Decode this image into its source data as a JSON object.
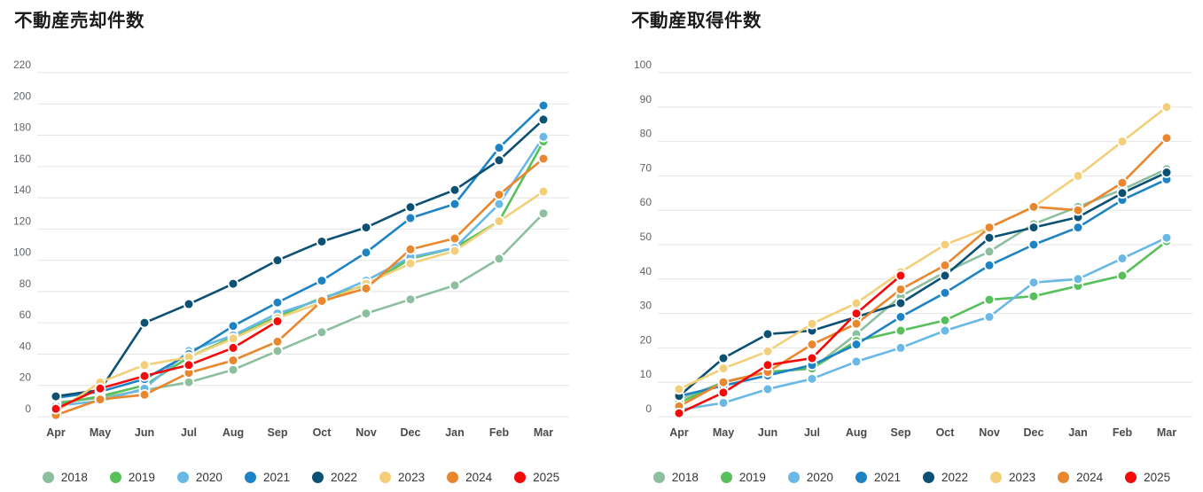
{
  "chart_data": [
    {
      "type": "line",
      "title": "不動産売却件数",
      "legend_position": "bottom",
      "grid": true,
      "categories": [
        "Apr",
        "May",
        "Jun",
        "Jul",
        "Aug",
        "Sep",
        "Oct",
        "Nov",
        "Dec",
        "Jan",
        "Feb",
        "Mar"
      ],
      "y_axis": {
        "min": 0,
        "max": 220,
        "step": 20
      },
      "series": [
        {
          "name": "2018",
          "color": "#8CBF9E",
          "values": [
            9,
            12,
            17,
            22,
            30,
            42,
            54,
            66,
            75,
            84,
            101,
            130
          ]
        },
        {
          "name": "2019",
          "color": "#57C05B",
          "values": [
            8,
            13,
            20,
            38,
            51,
            64,
            76,
            84,
            101,
            108,
            125,
            176
          ]
        },
        {
          "name": "2020",
          "color": "#69B8E5",
          "values": [
            7,
            10,
            18,
            42,
            52,
            66,
            75,
            87,
            102,
            108,
            136,
            179
          ]
        },
        {
          "name": "2021",
          "color": "#1E83C5",
          "values": [
            12,
            16,
            24,
            40,
            58,
            73,
            87,
            105,
            127,
            136,
            172,
            199
          ]
        },
        {
          "name": "2022",
          "color": "#0C5174",
          "values": [
            13,
            17,
            60,
            72,
            85,
            100,
            112,
            121,
            134,
            145,
            164,
            190
          ]
        },
        {
          "name": "2023",
          "color": "#F3CF79",
          "values": [
            3,
            22,
            33,
            38,
            50,
            63,
            73,
            85,
            98,
            106,
            125,
            144
          ]
        },
        {
          "name": "2024",
          "color": "#E8872E",
          "values": [
            1,
            11,
            14,
            28,
            36,
            48,
            74,
            82,
            107,
            114,
            142,
            165
          ]
        },
        {
          "name": "2025",
          "color": "#F50A0A",
          "values": [
            5,
            18,
            26,
            33,
            44,
            61
          ]
        }
      ]
    },
    {
      "type": "line",
      "title": "不動産取得件数",
      "legend_position": "bottom",
      "grid": true,
      "categories": [
        "Apr",
        "May",
        "Jun",
        "Jul",
        "Aug",
        "Sep",
        "Oct",
        "Nov",
        "Dec",
        "Jan",
        "Feb",
        "Mar"
      ],
      "y_axis": {
        "min": 0,
        "max": 100,
        "step": 10
      },
      "series": [
        {
          "name": "2018",
          "color": "#8CBF9E",
          "values": [
            5,
            10,
            13,
            14,
            24,
            35,
            42,
            48,
            56,
            61,
            66,
            72
          ]
        },
        {
          "name": "2019",
          "color": "#57C05B",
          "values": [
            4,
            10,
            13,
            14,
            22,
            25,
            28,
            34,
            35,
            38,
            41,
            51
          ]
        },
        {
          "name": "2020",
          "color": "#69B8E5",
          "values": [
            2,
            4,
            8,
            11,
            16,
            20,
            25,
            29,
            39,
            40,
            46,
            52
          ]
        },
        {
          "name": "2021",
          "color": "#1E83C5",
          "values": [
            6,
            9,
            12,
            15,
            21,
            29,
            36,
            44,
            50,
            55,
            63,
            69
          ]
        },
        {
          "name": "2022",
          "color": "#0C5174",
          "values": [
            6,
            17,
            24,
            25,
            29,
            33,
            41,
            52,
            55,
            58,
            65,
            71
          ]
        },
        {
          "name": "2023",
          "color": "#F3CF79",
          "values": [
            8,
            14,
            19,
            27,
            33,
            42,
            50,
            55,
            61,
            70,
            80,
            90
          ]
        },
        {
          "name": "2024",
          "color": "#E8872E",
          "values": [
            3,
            10,
            13,
            21,
            27,
            37,
            44,
            55,
            61,
            60,
            68,
            81
          ]
        },
        {
          "name": "2025",
          "color": "#F50A0A",
          "values": [
            1,
            7,
            15,
            17,
            30,
            41
          ]
        }
      ]
    }
  ]
}
